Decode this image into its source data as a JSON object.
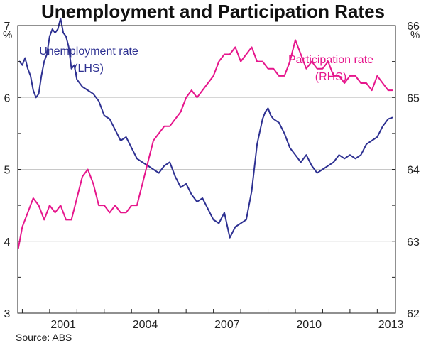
{
  "chart_data": {
    "type": "line",
    "title": "Unemployment and Participation Rates",
    "source": "Source: ABS",
    "left_axis": {
      "unit": "%",
      "min": 3,
      "max": 7,
      "ticks": [
        "3",
        "4",
        "5",
        "6",
        "7"
      ]
    },
    "right_axis": {
      "unit": "%",
      "min": 62,
      "max": 66,
      "ticks": [
        "62",
        "63",
        "64",
        "65",
        "66"
      ]
    },
    "x_range": [
      1999.833,
      2013.667
    ],
    "x_ticks": [
      {
        "value": 2001,
        "label": "2001"
      },
      {
        "value": 2004,
        "label": "2004"
      },
      {
        "value": 2007,
        "label": "2007"
      },
      {
        "value": 2010,
        "label": "2010"
      },
      {
        "value": 2013,
        "label": "2013"
      }
    ],
    "grid": true,
    "series": [
      {
        "name": "Unemployment rate",
        "axis_label": "(LHS)",
        "axis": "left",
        "color": "#2e3192",
        "x": [
          1999.9,
          2000.0,
          2000.1,
          2000.2,
          2000.3,
          2000.4,
          2000.5,
          2000.6,
          2000.7,
          2000.8,
          2000.9,
          2001.0,
          2001.1,
          2001.2,
          2001.3,
          2001.4,
          2001.5,
          2001.6,
          2001.7,
          2001.8,
          2001.9,
          2002.0,
          2002.2,
          2002.4,
          2002.6,
          2002.8,
          2003.0,
          2003.2,
          2003.4,
          2003.6,
          2003.8,
          2004.0,
          2004.2,
          2004.4,
          2004.6,
          2004.8,
          2005.0,
          2005.2,
          2005.4,
          2005.6,
          2005.8,
          2006.0,
          2006.2,
          2006.4,
          2006.6,
          2006.8,
          2007.0,
          2007.2,
          2007.4,
          2007.6,
          2007.8,
          2008.0,
          2008.2,
          2008.4,
          2008.6,
          2008.8,
          2008.9,
          2009.0,
          2009.1,
          2009.2,
          2009.4,
          2009.6,
          2009.8,
          2010.0,
          2010.2,
          2010.4,
          2010.6,
          2010.8,
          2011.0,
          2011.2,
          2011.4,
          2011.6,
          2011.8,
          2012.0,
          2012.2,
          2012.4,
          2012.6,
          2012.8,
          2013.0,
          2013.2,
          2013.4,
          2013.55
        ],
        "values": [
          6.5,
          6.45,
          6.55,
          6.4,
          6.3,
          6.1,
          6.0,
          6.05,
          6.3,
          6.5,
          6.6,
          6.85,
          6.95,
          6.9,
          6.95,
          7.1,
          6.9,
          6.85,
          6.7,
          6.4,
          6.45,
          6.25,
          6.15,
          6.1,
          6.05,
          5.95,
          5.75,
          5.7,
          5.55,
          5.4,
          5.45,
          5.3,
          5.15,
          5.1,
          5.05,
          5.0,
          4.95,
          5.05,
          5.1,
          4.9,
          4.75,
          4.8,
          4.65,
          4.55,
          4.6,
          4.45,
          4.3,
          4.25,
          4.4,
          4.05,
          4.2,
          4.25,
          4.3,
          4.7,
          5.35,
          5.7,
          5.8,
          5.85,
          5.75,
          5.7,
          5.65,
          5.5,
          5.3,
          5.2,
          5.1,
          5.2,
          5.05,
          4.95,
          5.0,
          5.05,
          5.1,
          5.2,
          5.15,
          5.2,
          5.15,
          5.2,
          5.35,
          5.4,
          5.45,
          5.6,
          5.7,
          5.72
        ]
      },
      {
        "name": "Participation rate",
        "axis_label": "(RHS)",
        "axis": "right",
        "color": "#e6168c",
        "x": [
          1999.85,
          2000.0,
          2000.2,
          2000.4,
          2000.6,
          2000.8,
          2001.0,
          2001.2,
          2001.4,
          2001.6,
          2001.8,
          2002.0,
          2002.2,
          2002.4,
          2002.6,
          2002.8,
          2003.0,
          2003.2,
          2003.4,
          2003.6,
          2003.8,
          2004.0,
          2004.2,
          2004.4,
          2004.6,
          2004.8,
          2005.0,
          2005.2,
          2005.4,
          2005.6,
          2005.8,
          2006.0,
          2006.2,
          2006.4,
          2006.6,
          2006.8,
          2007.0,
          2007.2,
          2007.4,
          2007.6,
          2007.8,
          2008.0,
          2008.2,
          2008.4,
          2008.6,
          2008.8,
          2009.0,
          2009.2,
          2009.4,
          2009.6,
          2009.8,
          2010.0,
          2010.2,
          2010.4,
          2010.6,
          2010.8,
          2011.0,
          2011.2,
          2011.4,
          2011.6,
          2011.8,
          2012.0,
          2012.2,
          2012.4,
          2012.6,
          2012.8,
          2013.0,
          2013.2,
          2013.4,
          2013.55
        ],
        "values": [
          62.9,
          63.2,
          63.4,
          63.6,
          63.5,
          63.3,
          63.5,
          63.4,
          63.5,
          63.3,
          63.3,
          63.6,
          63.9,
          64.0,
          63.8,
          63.5,
          63.5,
          63.4,
          63.5,
          63.4,
          63.4,
          63.5,
          63.5,
          63.8,
          64.1,
          64.4,
          64.5,
          64.6,
          64.6,
          64.7,
          64.8,
          65.0,
          65.1,
          65.0,
          65.1,
          65.2,
          65.3,
          65.5,
          65.6,
          65.6,
          65.7,
          65.5,
          65.6,
          65.7,
          65.5,
          65.5,
          65.4,
          65.4,
          65.3,
          65.3,
          65.5,
          65.8,
          65.6,
          65.4,
          65.5,
          65.4,
          65.4,
          65.5,
          65.3,
          65.3,
          65.2,
          65.3,
          65.3,
          65.2,
          65.2,
          65.1,
          65.3,
          65.2,
          65.1,
          65.1
        ]
      }
    ]
  }
}
